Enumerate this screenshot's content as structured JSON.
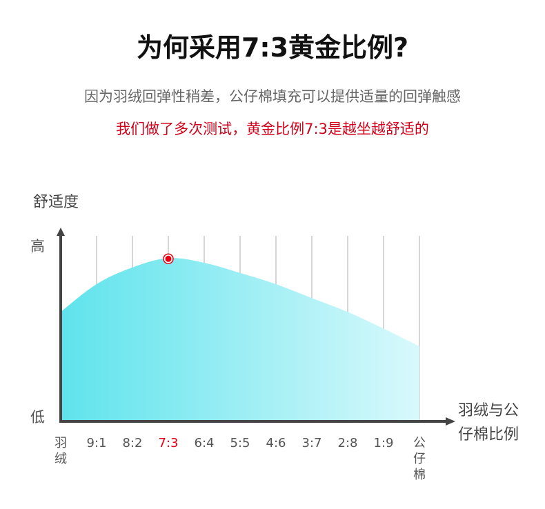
{
  "header": {
    "title": "为何采用7:3黄金比例?",
    "subtitle": "因为羽绒回弹性稍差，公仔棉填充可以提供适量的回弹触感",
    "highlight": "我们做了多次测试，黄金比例7:3是越坐越舒适的"
  },
  "chart_data": {
    "type": "area",
    "ylabel": "舒适度",
    "xlabel": "羽绒与公仔棉比例",
    "y_tick_high": "高",
    "y_tick_low": "低",
    "categories": [
      "羽绒",
      "9:1",
      "8:2",
      "7:3",
      "6:4",
      "5:5",
      "4:6",
      "3:7",
      "2:8",
      "1:9",
      "公仔棉"
    ],
    "values": [
      59,
      74,
      83,
      88,
      85.5,
      80,
      74,
      66.5,
      59,
      50,
      40.5
    ],
    "ylim": [
      0,
      100
    ],
    "highlight_category": "7:3",
    "grid": "vertical",
    "colors": {
      "fill_start": "#5fe3ec",
      "fill_end": "#d8f9fc",
      "highlight": "#e60012",
      "axis": "#444444",
      "grid": "#c8c8c8",
      "label": "#555555"
    }
  }
}
